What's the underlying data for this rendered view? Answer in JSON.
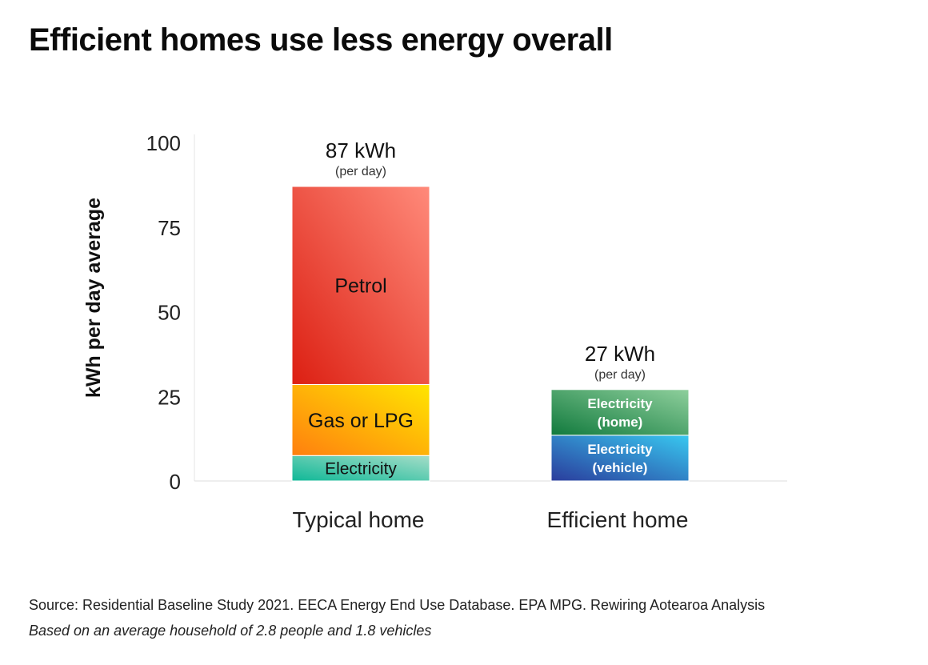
{
  "title": "Efficient homes use less energy overall",
  "footer": {
    "source": "Source: Residential Baseline Study 2021. EECA Energy End Use Database. EPA MPG. Rewiring Aotearoa Analysis",
    "note": "Based on an average household of 2.8 people and 1.8 vehicles"
  },
  "chart_data": {
    "type": "bar",
    "stacked": true,
    "ylabel": "kWh per day average",
    "ylim": [
      0,
      100
    ],
    "yticks": [
      0,
      25,
      50,
      75,
      100
    ],
    "grid": false,
    "categories": [
      {
        "name": "Typical home",
        "total_label": "87 kWh",
        "total_sublabel": "(per day)",
        "segments": [
          {
            "label": "Electricity",
            "value": 7.5,
            "colors": [
              "#0fb897",
              "#a5ddc8"
            ],
            "text_color": "#111111"
          },
          {
            "label": "Gas or LPG",
            "value": 21,
            "colors": [
              "#ff7f0f",
              "#ffe600"
            ],
            "text_color": "#111111"
          },
          {
            "label": "Petrol",
            "value": 58.5,
            "colors": [
              "#dc1f12",
              "#ff8a7a"
            ],
            "text_color": "#111111"
          }
        ]
      },
      {
        "name": "Efficient home",
        "total_label": "27 kWh",
        "total_sublabel": "(per day)",
        "segments": [
          {
            "label": "Electricity\n(vehicle)",
            "value": 13.5,
            "colors": [
              "#2a3c9c",
              "#38c8f0"
            ],
            "text_color": "#ffffff"
          },
          {
            "label": "Electricity\n(home)",
            "value": 13.5,
            "colors": [
              "#117a3d",
              "#8ecf9c"
            ],
            "text_color": "#ffffff"
          }
        ]
      }
    ]
  }
}
